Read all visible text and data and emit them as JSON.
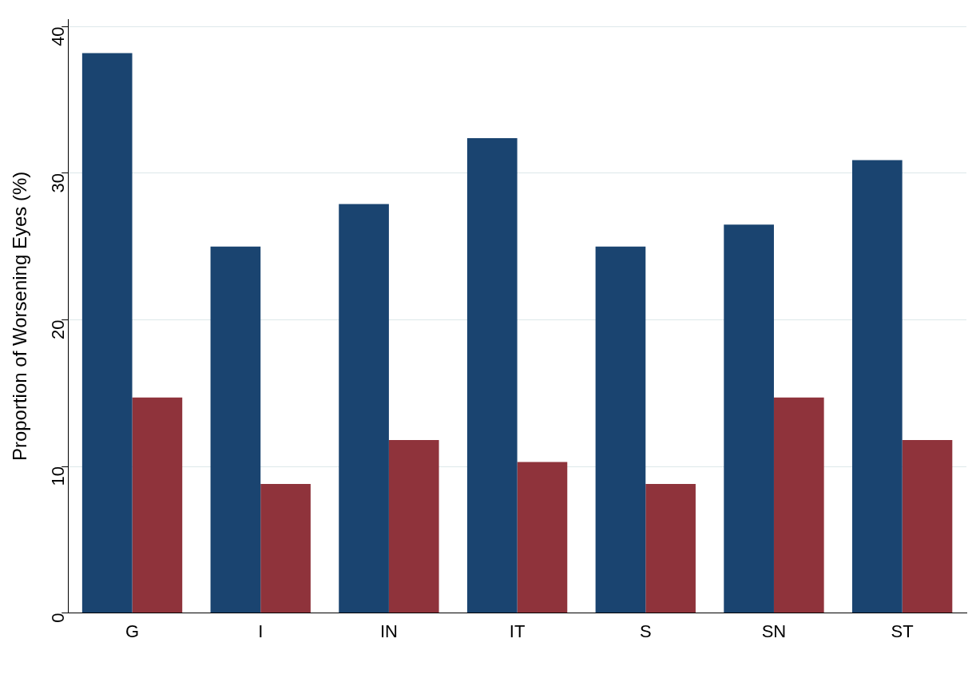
{
  "chart_data": {
    "type": "bar",
    "ylabel": "Proportion of Worsening Eyes (%)",
    "categories": [
      "G",
      "I",
      "IN",
      "IT",
      "S",
      "SN",
      "ST"
    ],
    "series": [
      {
        "color": "#1a4470",
        "values": [
          38.2,
          25.0,
          27.9,
          32.4,
          25.0,
          26.5,
          30.9
        ]
      },
      {
        "color": "#8f333b",
        "values": [
          14.7,
          8.8,
          11.8,
          10.3,
          8.8,
          14.7,
          11.8
        ]
      }
    ],
    "ylim": [
      0,
      40.5
    ],
    "yticks": [
      0,
      10,
      20,
      30,
      40
    ],
    "grid": "y"
  }
}
